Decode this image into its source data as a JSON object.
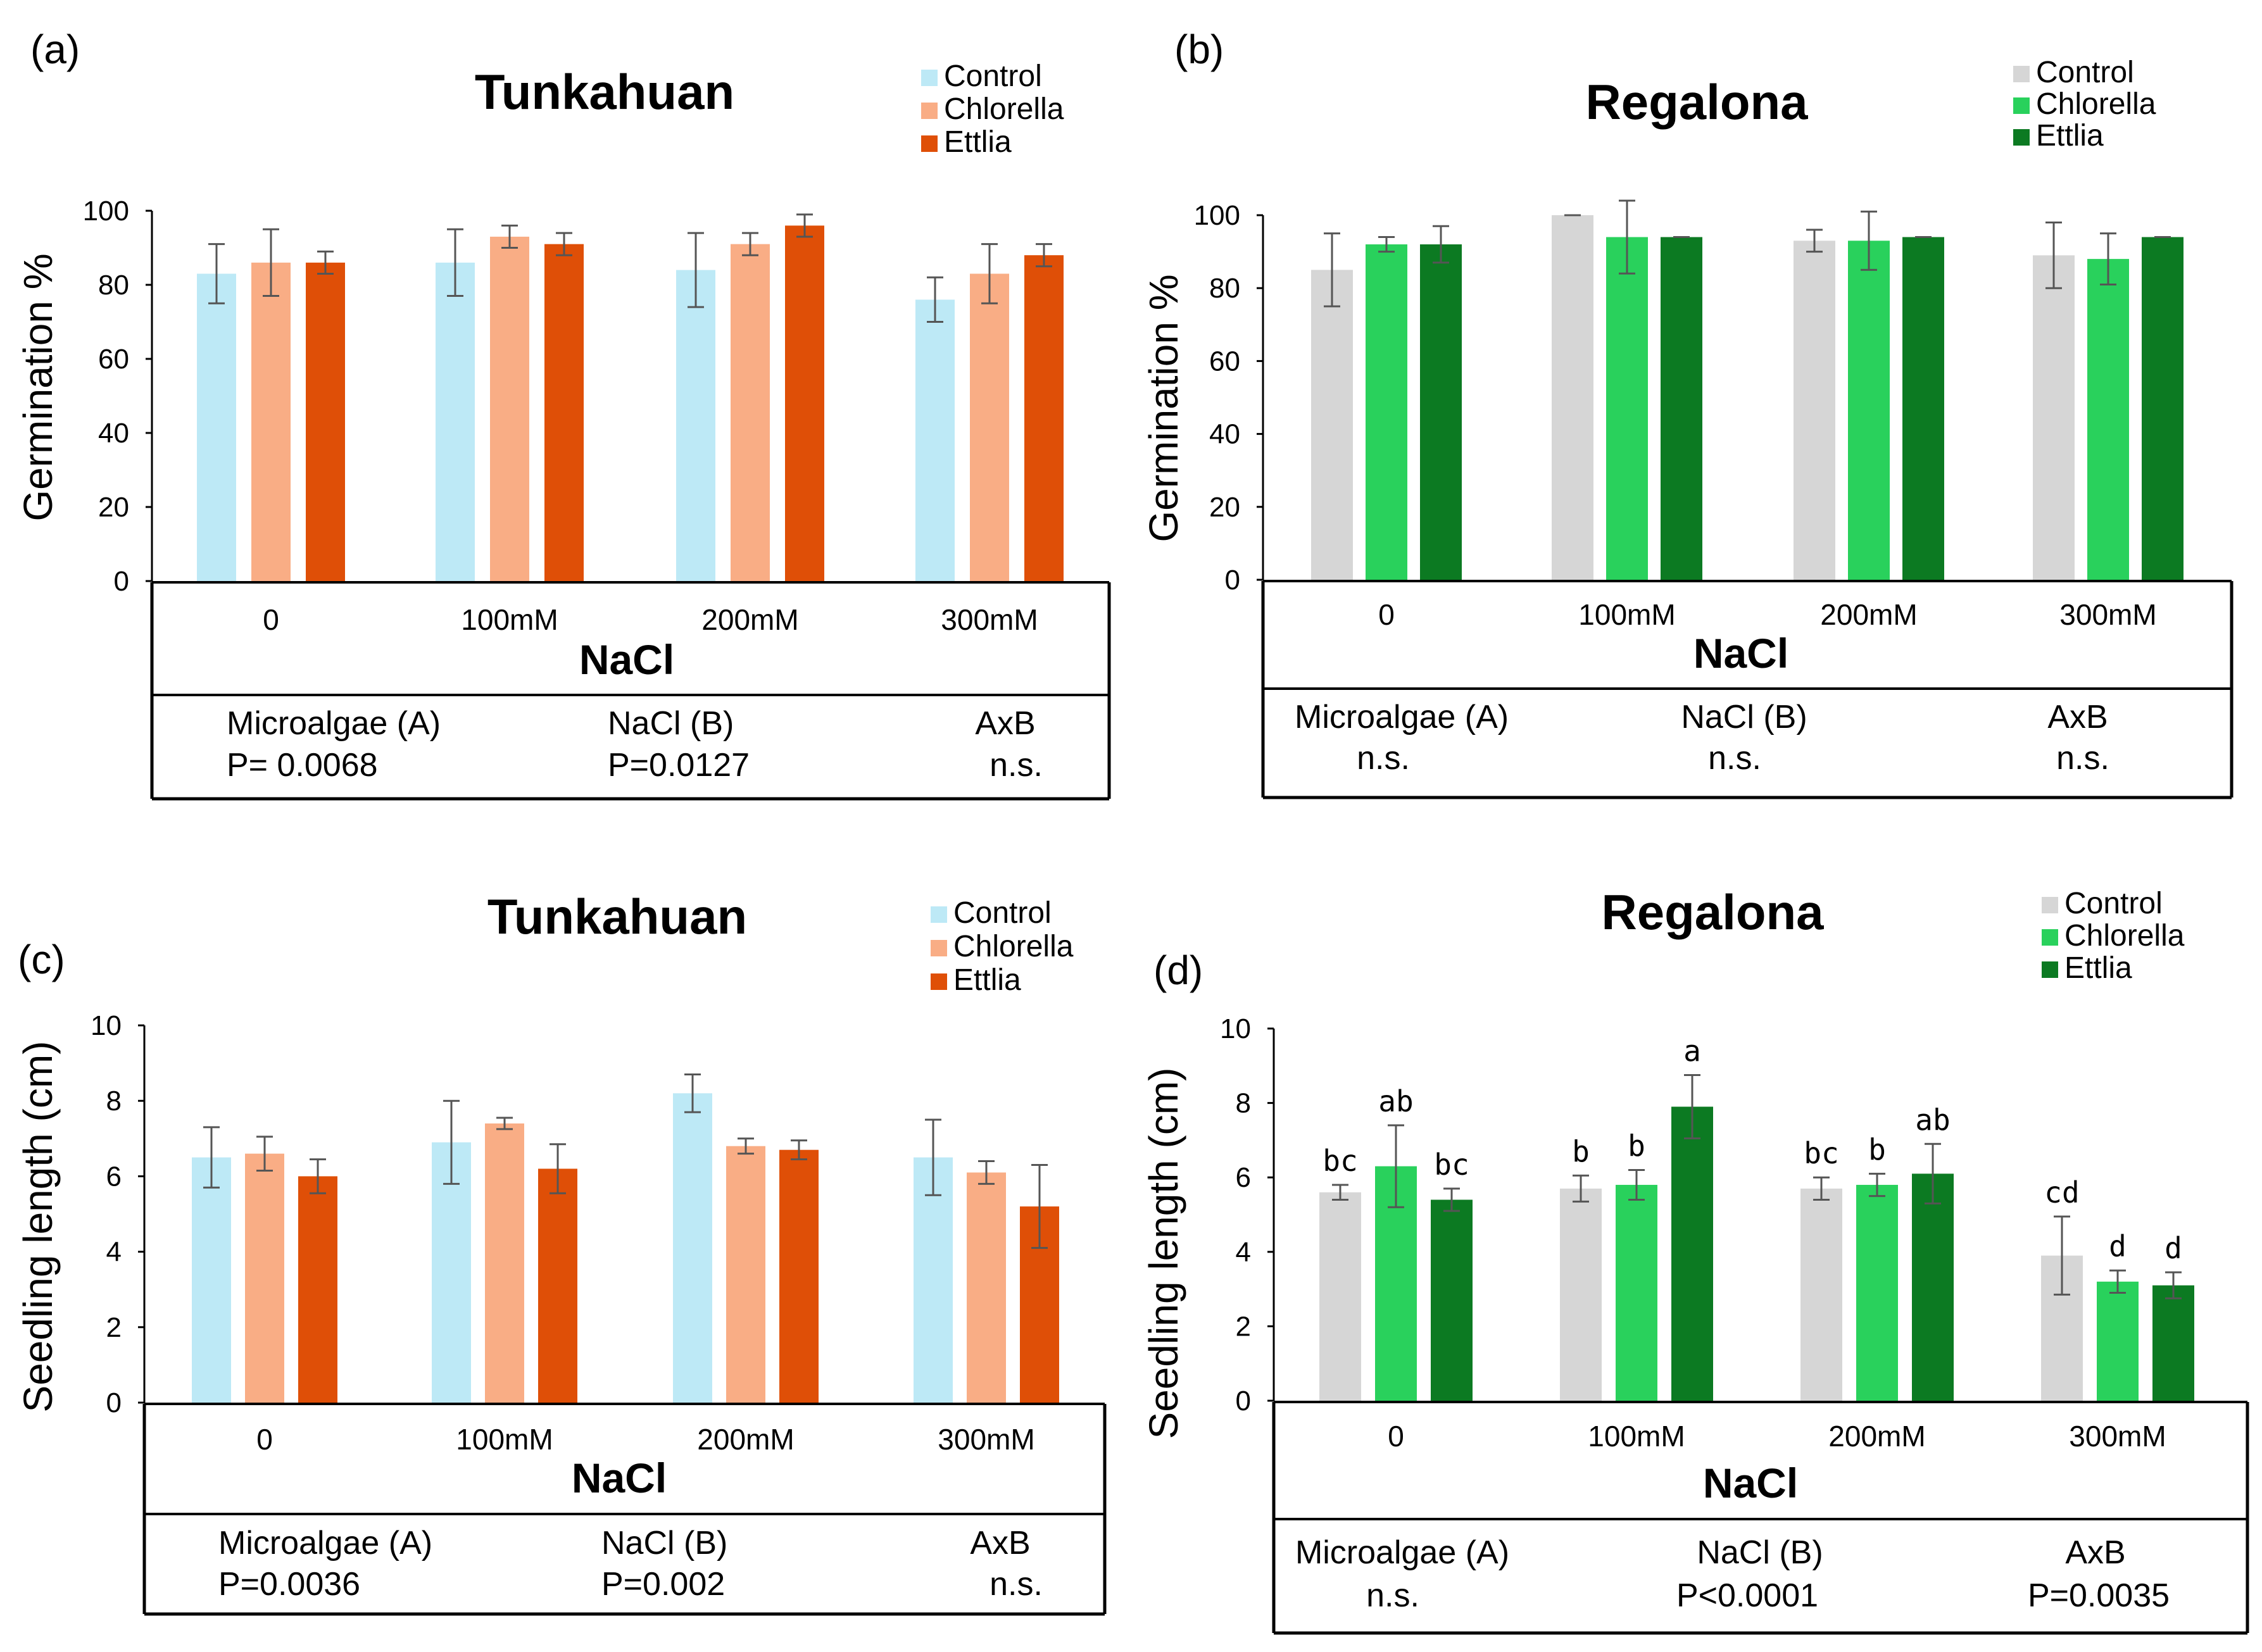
{
  "panels": [
    {
      "letter": "(a)",
      "title": "Tunkahuan",
      "xlabel": "NaCl",
      "stats": [
        {
          "factor": "Microalgae (A)",
          "value": "P= 0.0068"
        },
        {
          "factor": "NaCl (B)",
          "value": "P=0.0127"
        },
        {
          "factor": "AxB",
          "value": "n.s."
        }
      ]
    },
    {
      "letter": "(b)",
      "title": "Regalona",
      "xlabel": "NaCl",
      "stats": [
        {
          "factor": "Microalgae (A)",
          "value": "n.s."
        },
        {
          "factor": "NaCl (B)",
          "value": "n.s."
        },
        {
          "factor": "AxB",
          "value": "n.s."
        }
      ]
    },
    {
      "letter": "(c)",
      "title": "Tunkahuan",
      "xlabel": "NaCl",
      "stats": [
        {
          "factor": "Microalgae (A)",
          "value": "P=0.0036"
        },
        {
          "factor": "NaCl (B)",
          "value": "P=0.002"
        },
        {
          "factor": "AxB",
          "value": "n.s."
        }
      ]
    },
    {
      "letter": "(d)",
      "title": "Regalona",
      "xlabel": "NaCl",
      "stats": [
        {
          "factor": "Microalgae (A)",
          "value": "n.s."
        },
        {
          "factor": "NaCl (B)",
          "value": "P<0.0001"
        },
        {
          "factor": "AxB",
          "value": "P=0.0035"
        }
      ]
    }
  ],
  "chart_data": [
    {
      "type": "bar",
      "title": "Tunkahuan",
      "xlabel": "NaCl",
      "ylabel": "Germination %",
      "ylim": [
        0,
        100
      ],
      "yticks": [
        0,
        20,
        40,
        60,
        80,
        100
      ],
      "categories": [
        "0",
        "100mM",
        "200mM",
        "300mM"
      ],
      "series": [
        {
          "name": "Control",
          "color": "#bde9f6",
          "values": [
            83,
            86,
            84,
            76
          ],
          "errors": [
            8,
            9,
            10,
            6
          ]
        },
        {
          "name": "Chlorella",
          "color": "#f9ad85",
          "values": [
            86,
            93,
            91,
            83
          ],
          "errors": [
            9,
            3,
            3,
            8
          ]
        },
        {
          "name": "Ettlia",
          "color": "#df4f07",
          "values": [
            86,
            91,
            96,
            88
          ],
          "errors": [
            3,
            3,
            3,
            3
          ]
        }
      ]
    },
    {
      "type": "bar",
      "title": "Regalona",
      "xlabel": "NaCl",
      "ylabel": "Germination %",
      "ylim": [
        0,
        100
      ],
      "yticks": [
        0,
        20,
        40,
        60,
        80,
        100
      ],
      "categories": [
        "0",
        "100mM",
        "200mM",
        "300mM"
      ],
      "series": [
        {
          "name": "Control",
          "color": "#d6d6d6",
          "values": [
            85,
            100,
            93,
            89
          ],
          "errors": [
            10,
            0,
            3,
            9
          ]
        },
        {
          "name": "Chlorella",
          "color": "#29d15c",
          "values": [
            92,
            94,
            93,
            88
          ],
          "errors": [
            2,
            10,
            8,
            7
          ]
        },
        {
          "name": "Ettlia",
          "color": "#0c7a22",
          "values": [
            92,
            94,
            94,
            94
          ],
          "errors": [
            5,
            0,
            0,
            0
          ]
        }
      ]
    },
    {
      "type": "bar",
      "title": "Tunkahuan",
      "xlabel": "NaCl",
      "ylabel": "Seedling length  (cm)",
      "ylim": [
        0,
        10
      ],
      "yticks": [
        0,
        2,
        4,
        6,
        8,
        10
      ],
      "categories": [
        "0",
        "100mM",
        "200mM",
        "300mM"
      ],
      "series": [
        {
          "name": "Control",
          "color": "#bde9f6",
          "values": [
            6.5,
            6.9,
            8.2,
            6.5
          ],
          "errors": [
            0.8,
            1.1,
            0.5,
            1.0
          ]
        },
        {
          "name": "Chlorella",
          "color": "#f9ad85",
          "values": [
            6.6,
            7.4,
            6.8,
            6.1
          ],
          "errors": [
            0.45,
            0.15,
            0.2,
            0.3
          ]
        },
        {
          "name": "Ettlia",
          "color": "#df4f07",
          "values": [
            6.0,
            6.2,
            6.7,
            5.2
          ],
          "errors": [
            0.45,
            0.65,
            0.25,
            1.1
          ]
        }
      ]
    },
    {
      "type": "bar",
      "title": "Regalona",
      "xlabel": "NaCl",
      "ylabel": "Seedling length  (cm)",
      "ylim": [
        0,
        10
      ],
      "yticks": [
        0,
        2,
        4,
        6,
        8,
        10
      ],
      "categories": [
        "0",
        "100mM",
        "200mM",
        "300mM"
      ],
      "series": [
        {
          "name": "Control",
          "color": "#d6d6d6",
          "values": [
            5.6,
            5.7,
            5.7,
            3.9
          ],
          "errors": [
            0.2,
            0.35,
            0.3,
            1.05
          ],
          "letters": [
            "bc",
            "b",
            "bc",
            "cd"
          ]
        },
        {
          "name": "Chlorella",
          "color": "#29d15c",
          "values": [
            6.3,
            5.8,
            5.8,
            3.2
          ],
          "errors": [
            1.1,
            0.4,
            0.3,
            0.3
          ],
          "letters": [
            "ab",
            "b",
            "b",
            "d"
          ]
        },
        {
          "name": "Ettlia",
          "color": "#0c7a22",
          "values": [
            5.4,
            7.9,
            6.1,
            3.1
          ],
          "errors": [
            0.3,
            0.85,
            0.8,
            0.35
          ],
          "letters": [
            "bc",
            "a",
            "ab",
            "d"
          ]
        }
      ]
    }
  ]
}
